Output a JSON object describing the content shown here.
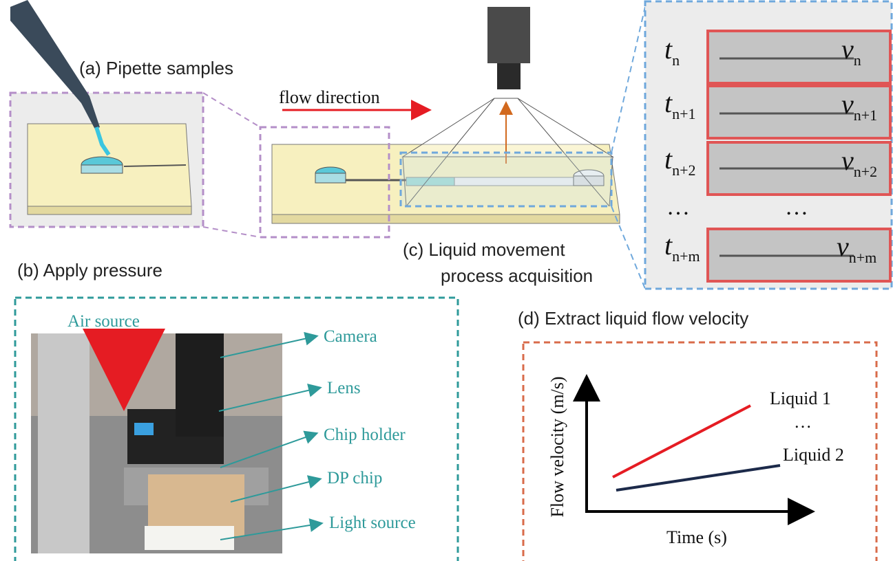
{
  "panels": {
    "a": {
      "label": "(a) Pipette samples"
    },
    "b": {
      "label": "(b) Apply pressure",
      "annotations": [
        "Air source",
        "Camera",
        "Lens",
        "Chip holder",
        "DP chip",
        "Light source"
      ]
    },
    "c": {
      "label": [
        "(c) Liquid movement",
        "process acquisition"
      ],
      "flow_label": "flow direction",
      "frames": [
        {
          "t": "t",
          "t_sub": "n",
          "v": "v",
          "v_sub": "n"
        },
        {
          "t": "t",
          "t_sub": "n+1",
          "v": "v",
          "v_sub": "n+1"
        },
        {
          "t": "t",
          "t_sub": "n+2",
          "v": "v",
          "v_sub": "n+2"
        },
        {
          "t": "t",
          "t_sub": "n+m",
          "v": "v",
          "v_sub": "n+m"
        }
      ],
      "ellipsis": [
        "…",
        "…"
      ]
    },
    "d": {
      "label": "(d) Extract liquid flow velocity",
      "y_label": "Flow velocity (m/s)",
      "x_label": "Time (s)",
      "lines": [
        "Liquid 1",
        "…",
        "Liquid 2"
      ]
    }
  }
}
